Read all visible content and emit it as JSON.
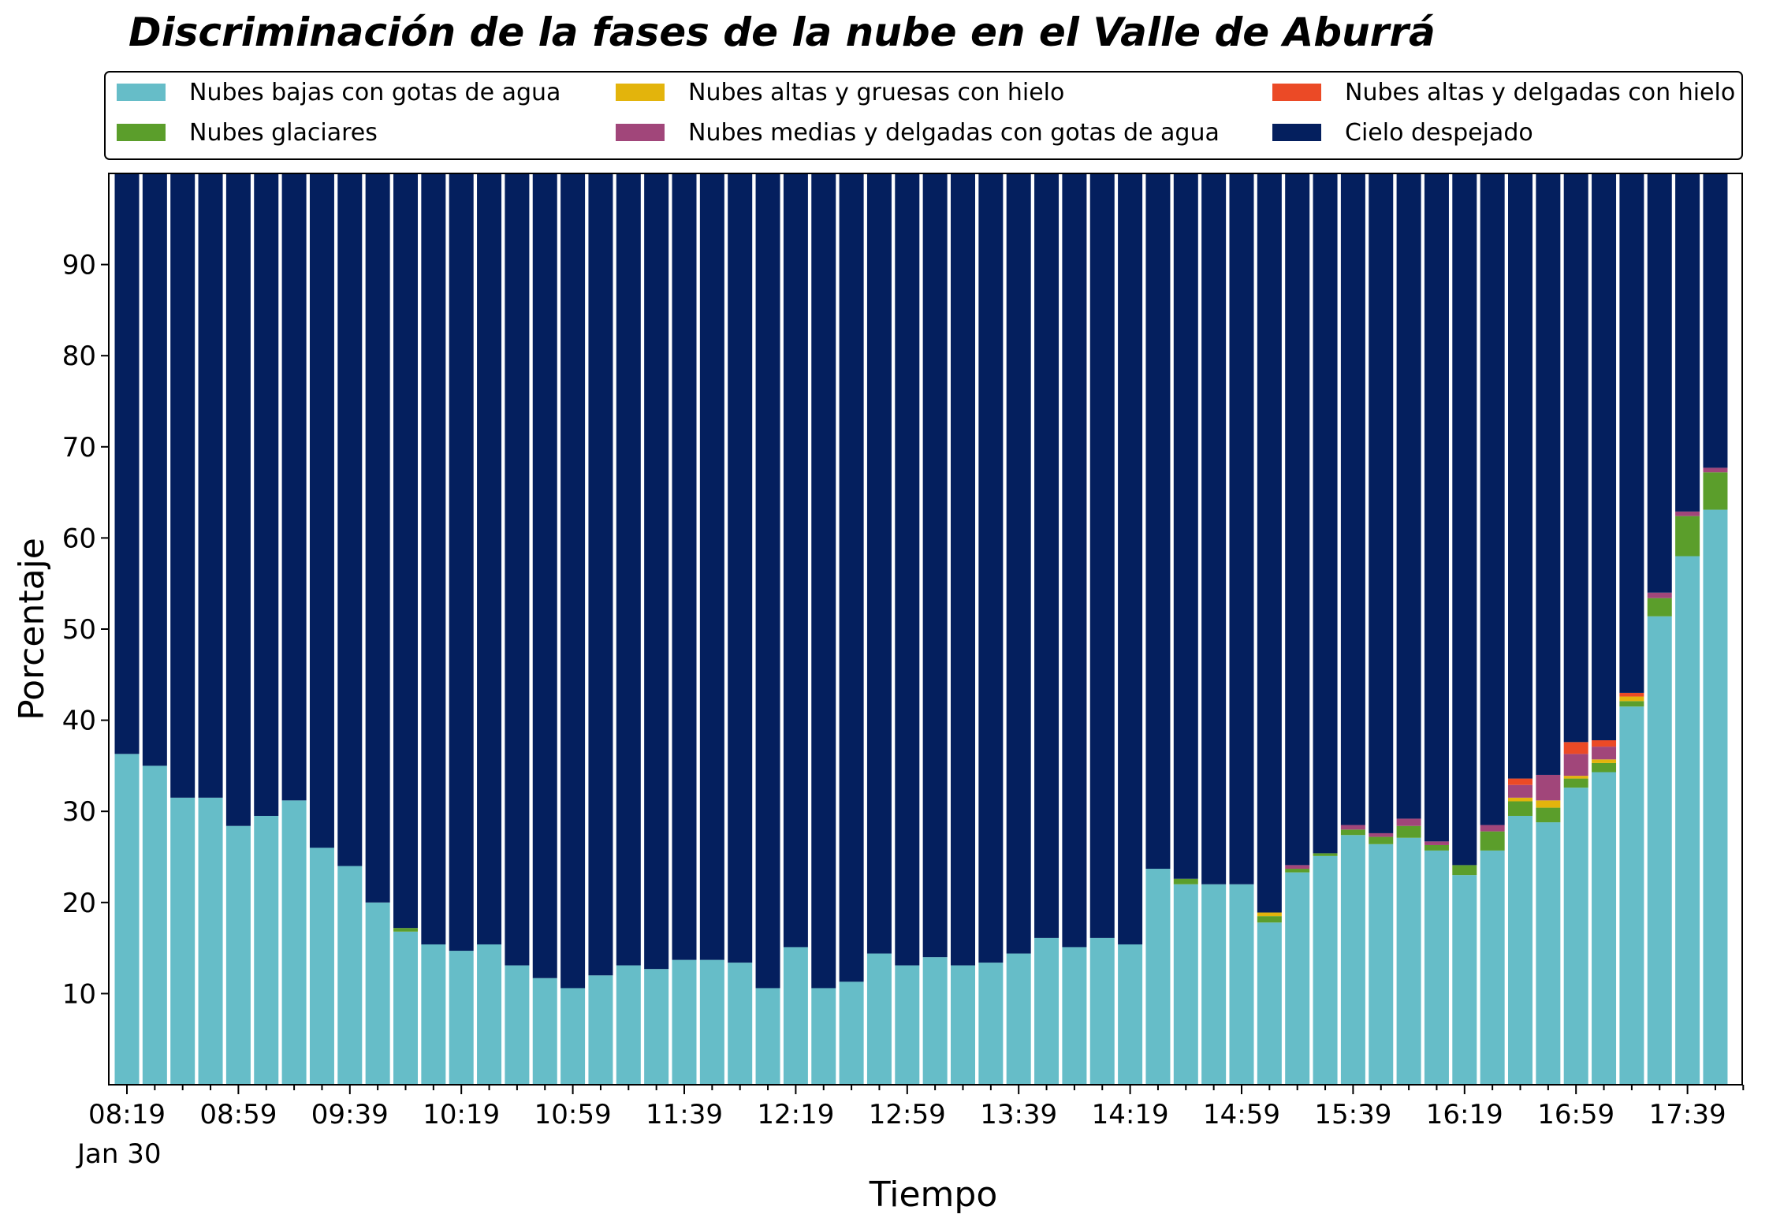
{
  "chart_data": {
    "type": "bar",
    "stacked": true,
    "title": "Discriminación de la fases de la nube en el Valle de Aburrá",
    "xlabel": "Tiempo",
    "ylabel": "Porcentaje",
    "date_label": "Jan 30",
    "ylim": [
      0,
      100
    ],
    "y_ticks": [
      10,
      20,
      30,
      40,
      50,
      60,
      70,
      80,
      90
    ],
    "x_tick_labels": [
      "08:19",
      "08:59",
      "09:39",
      "10:19",
      "10:59",
      "11:39",
      "12:19",
      "12:59",
      "13:39",
      "14:19",
      "14:59",
      "15:39",
      "16:19",
      "16:59",
      "17:39"
    ],
    "legend_position": "top",
    "grid": false,
    "categories": [
      "08:19",
      "08:29",
      "08:39",
      "08:49",
      "08:59",
      "09:09",
      "09:19",
      "09:29",
      "09:39",
      "09:49",
      "09:59",
      "10:09",
      "10:19",
      "10:29",
      "10:39",
      "10:49",
      "10:59",
      "11:09",
      "11:19",
      "11:29",
      "11:39",
      "11:49",
      "11:59",
      "12:09",
      "12:19",
      "12:29",
      "12:39",
      "12:49",
      "12:59",
      "13:09",
      "13:19",
      "13:29",
      "13:39",
      "13:49",
      "13:59",
      "14:09",
      "14:19",
      "14:29",
      "14:39",
      "14:49",
      "14:59",
      "15:09",
      "15:19",
      "15:29",
      "15:39",
      "15:49",
      "15:59",
      "16:09",
      "16:19",
      "16:29",
      "16:39",
      "16:49",
      "16:59",
      "17:09",
      "17:19",
      "17:29",
      "17:39",
      "17:49"
    ],
    "series": [
      {
        "name": "Nubes bajas con gotas de agua",
        "color": "#66bdc8",
        "values": [
          36.3,
          35,
          31.5,
          31.5,
          28.4,
          29.5,
          31.2,
          26,
          24,
          20,
          16.8,
          15.4,
          14.7,
          15.4,
          13.1,
          11.7,
          10.6,
          12,
          13.1,
          12.7,
          13.7,
          13.7,
          13.4,
          10.6,
          15.1,
          10.6,
          11.3,
          14.4,
          13.1,
          14,
          13.1,
          13.4,
          14.4,
          16.1,
          15.1,
          16.1,
          15.4,
          23.7,
          22,
          22,
          22,
          17.8,
          23.3,
          25.1,
          27.4,
          26.4,
          27.1,
          25.7,
          23,
          25.7,
          29.5,
          28.8,
          32.6,
          34.3,
          41.5,
          51.4,
          58,
          63.1
        ]
      },
      {
        "name": "Nubes glaciares",
        "color": "#5b9e2b",
        "values": [
          0,
          0,
          0,
          0,
          0,
          0,
          0,
          0,
          0,
          0,
          0.4,
          0,
          0,
          0,
          0,
          0,
          0,
          0,
          0,
          0,
          0,
          0,
          0,
          0,
          0,
          0,
          0,
          0,
          0,
          0,
          0,
          0,
          0,
          0,
          0,
          0,
          0,
          0,
          0.6,
          0,
          0,
          0.7,
          0.4,
          0.3,
          0.6,
          0.8,
          1.3,
          0.6,
          1.1,
          2.1,
          1.6,
          1.6,
          1,
          1,
          0.6,
          2,
          4.4,
          4.1
        ]
      },
      {
        "name": "Nubes altas y gruesas con hielo",
        "color": "#e3b40c",
        "values": [
          0,
          0,
          0,
          0,
          0,
          0,
          0,
          0,
          0,
          0,
          0,
          0,
          0,
          0,
          0,
          0,
          0,
          0,
          0,
          0,
          0,
          0,
          0,
          0,
          0,
          0,
          0,
          0,
          0,
          0,
          0,
          0,
          0,
          0,
          0,
          0,
          0,
          0,
          0,
          0,
          0,
          0.4,
          0,
          0,
          0,
          0,
          0,
          0,
          0,
          0,
          0.4,
          0.8,
          0.3,
          0.4,
          0.5,
          0,
          0,
          0
        ]
      },
      {
        "name": "Nubes medias y delgadas con gotas de agua",
        "color": "#a1467a",
        "values": [
          0,
          0,
          0,
          0,
          0,
          0,
          0,
          0,
          0,
          0,
          0,
          0,
          0,
          0,
          0,
          0,
          0,
          0,
          0,
          0,
          0,
          0,
          0,
          0,
          0,
          0,
          0,
          0,
          0,
          0,
          0,
          0,
          0,
          0,
          0,
          0,
          0,
          0,
          0,
          0,
          0,
          0,
          0.4,
          0,
          0.5,
          0.4,
          0.8,
          0.4,
          0,
          0.7,
          1.4,
          2.8,
          2.4,
          1.4,
          0,
          0.6,
          0.5,
          0.5
        ]
      },
      {
        "name": "Nubes altas y delgadas con hielo",
        "color": "#eb4a26",
        "values": [
          0,
          0,
          0,
          0,
          0,
          0,
          0,
          0,
          0,
          0,
          0,
          0,
          0,
          0,
          0,
          0,
          0,
          0,
          0,
          0,
          0,
          0,
          0,
          0,
          0,
          0,
          0,
          0,
          0,
          0,
          0,
          0,
          0,
          0,
          0,
          0,
          0,
          0,
          0,
          0,
          0,
          0,
          0,
          0,
          0,
          0,
          0,
          0,
          0,
          0,
          0.7,
          0,
          1.3,
          0.7,
          0.4,
          0,
          0,
          0
        ]
      },
      {
        "name": "Cielo despejado",
        "color": "#041f5e",
        "values": [
          63.7,
          65,
          68.5,
          68.5,
          71.6,
          70.5,
          68.8,
          74,
          76,
          80,
          82.8,
          84.6,
          85.3,
          84.6,
          86.9,
          88.3,
          89.4,
          88,
          86.9,
          87.3,
          86.3,
          86.3,
          86.6,
          89.4,
          84.9,
          89.4,
          88.7,
          85.6,
          86.9,
          86,
          86.9,
          86.6,
          85.6,
          83.9,
          84.9,
          83.9,
          84.6,
          76.3,
          77.4,
          78,
          78,
          81.1,
          75.9,
          74.6,
          71.5,
          72.4,
          70.8,
          73.3,
          75.9,
          71.5,
          66.4,
          66,
          62.4,
          62.2,
          57,
          46,
          37.1,
          32.3
        ]
      }
    ]
  }
}
